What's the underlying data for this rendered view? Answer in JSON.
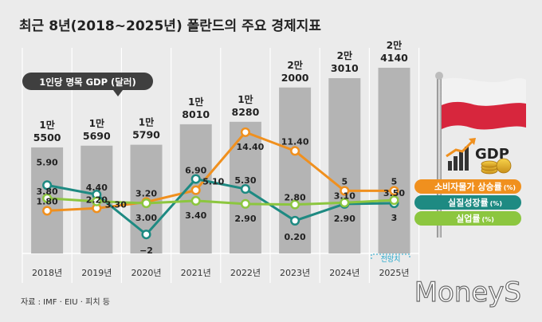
{
  "title": "최근 8년(2018~2025년) 폴란드의 주요 경제지표",
  "source": "자료 : IMF · EIU · 피치 등",
  "watermark": "MoneyS",
  "gdp_caption": "1인당 명목 GDP (달러)",
  "gdp_icon_label": "GDP",
  "forecast_tag": "전망치",
  "chart_data": {
    "type": "bar",
    "title": "최근 8년(2018~2025년) 폴란드의 주요 경제지표",
    "categories": [
      "2018년",
      "2019년",
      "2020년",
      "2021년",
      "2022년",
      "2023년",
      "2024년",
      "2025년"
    ],
    "bar_series": {
      "name": "1인당 명목 GDP (달러)",
      "values": [
        15500,
        15690,
        15790,
        18010,
        18280,
        22000,
        23010,
        24140
      ],
      "labels": [
        [
          "1만",
          "5500"
        ],
        [
          "1만",
          "5690"
        ],
        [
          "1만",
          "5790"
        ],
        [
          "1만",
          "8010"
        ],
        [
          "1만",
          "8280"
        ],
        [
          "2만",
          "2000"
        ],
        [
          "2만",
          "3010"
        ],
        [
          "2만",
          "4140"
        ]
      ],
      "color": "#b4b4b4"
    },
    "line_series": [
      {
        "name": "소비자물가 상승률",
        "unit": "(%)",
        "color": "#f0901e",
        "values": [
          1.8,
          2.2,
          3.2,
          5.1,
          14.4,
          11.4,
          5,
          5
        ],
        "labels": [
          "1.80",
          "2.20",
          "3.20",
          "5.10",
          "14.40",
          "11.40",
          "5",
          "5"
        ]
      },
      {
        "name": "실질성장률",
        "unit": "(%)",
        "color": "#1e8a82",
        "values": [
          5.9,
          4.4,
          -2,
          6.9,
          5.3,
          0.2,
          2.9,
          3
        ],
        "labels": [
          "5.90",
          "4.40",
          "−2",
          "6.90",
          "5.30",
          "0.20",
          "2.90",
          "3"
        ]
      },
      {
        "name": "실업률",
        "unit": "(%)",
        "color": "#8cc63f",
        "values": [
          3.8,
          3.3,
          3.0,
          3.4,
          2.9,
          2.8,
          3.1,
          3.5
        ],
        "labels": [
          "3.80",
          "3.30",
          "3.00",
          "3.40",
          "2.90",
          "2.80",
          "3.10",
          "3.50"
        ]
      }
    ],
    "xlabel": "",
    "ylabel": "",
    "legend_position": "right"
  },
  "colors": {
    "title": "#222222",
    "bar": "#b4b4b4",
    "caption_bg": "#3f3f3f",
    "cpi": "#f0901e",
    "growth": "#1e8a82",
    "unemployment": "#8cc63f",
    "flag_white": "#f2f2f2",
    "flag_red": "#d7263d"
  },
  "icons": [
    "flag-poland-icon",
    "gdp-bar-chart-icon",
    "coin-stack-icon"
  ]
}
